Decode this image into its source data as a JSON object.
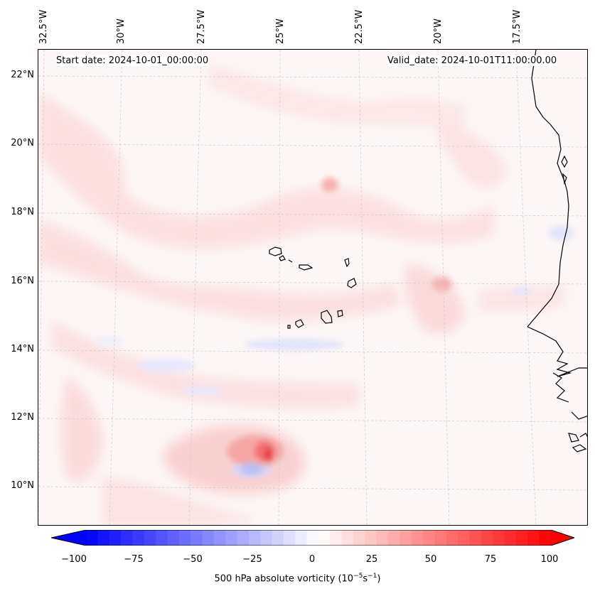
{
  "header": {
    "start_date": "Start date: 2024-10-01_00:00:00",
    "valid_date": "Valid_date: 2024-10-01T11:00:00.00"
  },
  "lon_labels": [
    "32.5°W",
    "30°W",
    "27.5°W",
    "25°W",
    "22.5°W",
    "20°W",
    "17.5°W"
  ],
  "lat_labels": [
    "22°N",
    "20°N",
    "18°N",
    "16°N",
    "14°N",
    "12°N",
    "10°N"
  ],
  "colorbar": {
    "ticks": [
      "−100",
      "−75",
      "−50",
      "−25",
      "0",
      "25",
      "50",
      "75",
      "100"
    ],
    "label": "500 hPa absolute vorticity (10",
    "label_exp1": "−5",
    "label_mid": "s",
    "label_exp2": "−1",
    "label_end": ")",
    "min": -100,
    "max": 100,
    "color_low": "#0000ff",
    "color_mid": "#ffffff",
    "color_high": "#ff0000"
  }
}
